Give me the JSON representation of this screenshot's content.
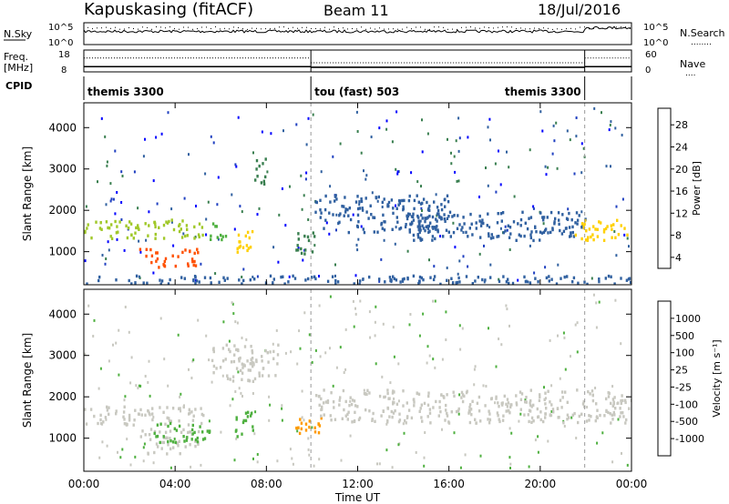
{
  "header": {
    "station": "Kapuskasing (fitACF)",
    "beam": "Beam 11",
    "date": "18/Jul/2016"
  },
  "strip_panels": {
    "nsky": {
      "label": "N.Sky",
      "left_ticks": [
        "10^5",
        "10^0"
      ],
      "right_ticks": [
        "10^5",
        "10^0"
      ],
      "right_label": "N.Search",
      "right_legend": "........"
    },
    "freq": {
      "label_top": "Freq.",
      "label_units": "[MHz]",
      "left_ticks": [
        "18",
        "8"
      ],
      "right_ticks": [
        "60",
        "0"
      ],
      "right_label": "Nave",
      "right_legend": "....",
      "segments": [
        {
          "start_h": 0.0,
          "end_h": 9.95,
          "freq_mhz": 10.4,
          "nave": 38
        },
        {
          "start_h": 9.95,
          "end_h": 21.95,
          "freq_mhz": 10.1,
          "nave": 25
        },
        {
          "start_h": 21.95,
          "end_h": 24.0,
          "freq_mhz": 10.4,
          "nave": 38
        }
      ]
    },
    "cpid": {
      "label": "CPID",
      "modes": [
        {
          "name": "themis 3300",
          "start_h": 0.0,
          "end_h": 9.95,
          "align": "left"
        },
        {
          "name": "tou (fast) 503",
          "start_h": 9.95,
          "end_h": 21.95,
          "align": "left"
        },
        {
          "name": "themis 3300",
          "start_h": 9.95,
          "end_h": 21.95,
          "align": "right"
        }
      ]
    }
  },
  "chart_data": [
    {
      "type": "heatmap",
      "name": "Power",
      "ylabel": "Slant Range [km]",
      "yticks": [
        1000,
        2000,
        3000,
        4000
      ],
      "ylim": [
        200,
        4600
      ],
      "xlim": [
        0,
        24
      ],
      "colorbar": {
        "label": "Power [dB]",
        "ticks": [
          "4",
          "8",
          "12",
          "16",
          "20",
          "24",
          "28"
        ],
        "range": [
          2,
          31
        ],
        "colors": [
          "#0000ff",
          "#2040c0",
          "#3060a0",
          "#3a7f50",
          "#4fb040",
          "#a0c828",
          "#ffd000",
          "#ff9a00",
          "#ff5000",
          "#e00000"
        ]
      },
      "features": [
        {
          "t0": 0.0,
          "t1": 5.2,
          "r0": 1350,
          "r1": 1800,
          "value": 17
        },
        {
          "t0": 2.4,
          "t1": 5.0,
          "r0": 650,
          "r1": 1100,
          "value": 28
        },
        {
          "t0": 5.5,
          "t1": 6.2,
          "r0": 1300,
          "r1": 1800,
          "value": 14
        },
        {
          "t0": 6.6,
          "t1": 7.4,
          "r0": 1000,
          "r1": 1700,
          "value": 20
        },
        {
          "t0": 7.4,
          "t1": 8.0,
          "r0": 2650,
          "r1": 3300,
          "value": 11
        },
        {
          "t0": 9.2,
          "t1": 10.1,
          "r0": 900,
          "r1": 1500,
          "value": 12
        },
        {
          "t0": 10.1,
          "t1": 16.0,
          "r0": 1500,
          "r1": 2400,
          "value": 9
        },
        {
          "t0": 14.0,
          "t1": 22.0,
          "r0": 1300,
          "r1": 2000,
          "value": 10
        },
        {
          "t0": 21.5,
          "t1": 24.0,
          "r0": 1300,
          "r1": 1800,
          "value": 22
        },
        {
          "t0": 0.0,
          "t1": 24.0,
          "r0": 250,
          "r1": 450,
          "value": 10
        }
      ]
    },
    {
      "type": "heatmap",
      "name": "Velocity",
      "ylabel": "Slant Range [km]",
      "xlabel": "Time UT",
      "xticks": [
        "00:00",
        "04:00",
        "08:00",
        "12:00",
        "16:00",
        "20:00",
        "00:00"
      ],
      "yticks": [
        1000,
        2000,
        3000,
        4000
      ],
      "ylim": [
        200,
        4600
      ],
      "xlim": [
        0,
        24
      ],
      "colorbar": {
        "label": "Velocity [m s⁻¹]",
        "ticks": [
          "1000",
          "500",
          "100",
          "25",
          "-25",
          "-100",
          "-500",
          "-1000"
        ],
        "colors": [
          "#2050c0",
          "#2e7f50",
          "#4fb040",
          "#7fd040",
          "#c8c8c0",
          "#ffd020",
          "#ff9a00",
          "#ff5a00",
          "#e00000"
        ]
      },
      "features": [
        {
          "t0": 0.0,
          "t1": 5.2,
          "r0": 1350,
          "r1": 1800,
          "value": 0
        },
        {
          "t0": 2.4,
          "t1": 5.0,
          "r0": 650,
          "r1": 1250,
          "value": 0
        },
        {
          "t0": 3.0,
          "t1": 5.5,
          "r0": 900,
          "r1": 1400,
          "value": 150
        },
        {
          "t0": 6.6,
          "t1": 7.4,
          "r0": 1000,
          "r1": 1700,
          "value": 150
        },
        {
          "t0": 9.2,
          "t1": 10.4,
          "r0": 1100,
          "r1": 1600,
          "value": -400
        },
        {
          "t0": 10.1,
          "t1": 24.0,
          "r0": 1400,
          "r1": 2200,
          "value": 0
        },
        {
          "t0": 5.5,
          "t1": 8.5,
          "r0": 2400,
          "r1": 3300,
          "value": 0
        }
      ]
    }
  ],
  "time_markers_h": [
    9.95,
    21.95
  ]
}
